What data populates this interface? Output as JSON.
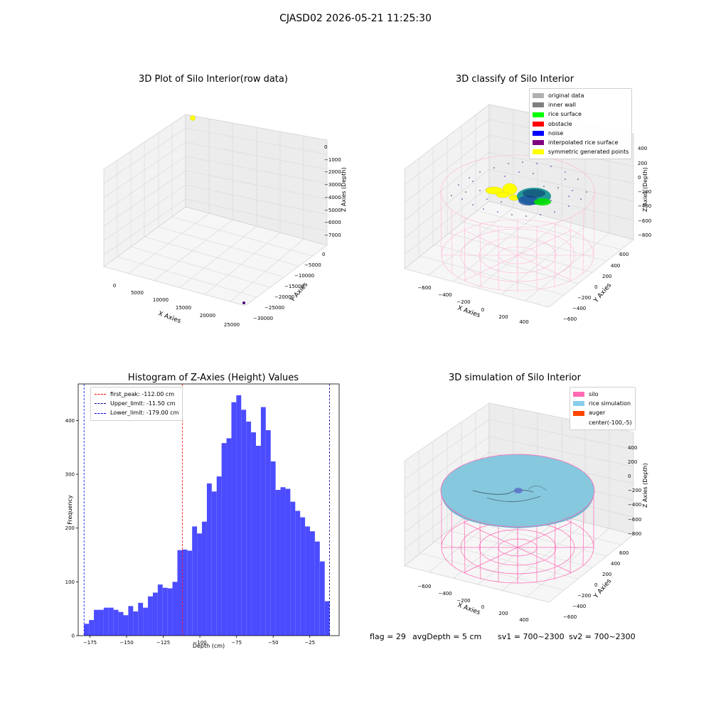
{
  "suptitle": "CJASD02 2026-05-21 11:25:30",
  "panel1": {
    "title": "3D Plot of Silo Interior(row data)",
    "x_axis_label": "X Axies",
    "y_axis_label": "Y Axies",
    "z_axis_label": "Z Axies (Depth)",
    "x_ticks": [
      "0",
      "5000",
      "10000",
      "15000",
      "20000",
      "25000"
    ],
    "y_ticks": [
      "0",
      "−5000",
      "−10000",
      "−15000",
      "−20000",
      "−25000",
      "−30000"
    ],
    "z_ticks": [
      "0",
      "−1000",
      "−2000",
      "−3000",
      "−4000",
      "−5000",
      "−6000",
      "−7000"
    ]
  },
  "panel2": {
    "title": "3D classify of Silo Interior",
    "x_axis_label": "X Axies",
    "y_axis_label": "Y Axies",
    "z_axis_label": "Z Axies (Depth)",
    "x_ticks": [
      "−600",
      "−400",
      "−200",
      "0",
      "200",
      "400"
    ],
    "y_ticks": [
      "600",
      "400",
      "200",
      "0",
      "−200",
      "−400",
      "−600"
    ],
    "z_ticks": [
      "400",
      "200",
      "0",
      "−200",
      "−400",
      "−600",
      "−800"
    ],
    "legend": [
      {
        "label": "original data",
        "color": "#b0b0b0"
      },
      {
        "label": "inner wall",
        "color": "#808080"
      },
      {
        "label": "rice surface",
        "color": "#00ff00"
      },
      {
        "label": "obstacle",
        "color": "#ff0000"
      },
      {
        "label": "noise",
        "color": "#0000ff"
      },
      {
        "label": "interpolated rice surface",
        "color": "#800080"
      },
      {
        "label": "symmetric generated points",
        "color": "#ffff00"
      }
    ]
  },
  "panel3": {
    "title": "3D simulation of Silo Interior",
    "x_axis_label": "X Axies",
    "y_axis_label": "Y Axies",
    "z_axis_label": "Z Axies (Depth)",
    "x_ticks": [
      "−600",
      "−400",
      "−200",
      "0",
      "200",
      "400"
    ],
    "y_ticks": [
      "600",
      "400",
      "200",
      "0",
      "−200",
      "−400",
      "−600"
    ],
    "z_ticks": [
      "400",
      "200",
      "0",
      "−200",
      "−400",
      "−600",
      "−800"
    ],
    "legend": [
      {
        "label": "silo",
        "color": "#ff69b4"
      },
      {
        "label": "rice simulation",
        "color": "#87ceeb"
      },
      {
        "label": "auger",
        "color": "#ff4500"
      },
      {
        "label": "center(-100,-5)",
        "color": ""
      }
    ]
  },
  "footer": {
    "flag": "flag = 29",
    "avg_depth": "avgDepth = 5 cm",
    "sv1": "sv1 = 700~2300",
    "sv2": "sv2 = 700~2300"
  },
  "chart_data": {
    "type": "bar",
    "title": "Histogram of Z-Axies (Height) Values",
    "xlabel": "Depth (cm)",
    "ylabel": "Frequency",
    "xlim": [
      -183,
      -5
    ],
    "ylim": [
      0,
      468
    ],
    "x_ticks": [
      -175,
      -150,
      -125,
      -100,
      -75,
      -50,
      -25
    ],
    "x_tick_labels": [
      "−175",
      "−150",
      "−125",
      "−100",
      "−75",
      "−50",
      "−25"
    ],
    "y_ticks": [
      0,
      100,
      200,
      300,
      400
    ],
    "y_tick_labels": [
      "0",
      "100",
      "200",
      "300",
      "400"
    ],
    "bin_start": -179,
    "bin_width": 3.35,
    "bar_color": "#4c4cff",
    "values": [
      22,
      29,
      48,
      48,
      52,
      52,
      48,
      44,
      38,
      55,
      45,
      61,
      52,
      73,
      80,
      95,
      89,
      88,
      100,
      159,
      160,
      158,
      203,
      190,
      212,
      283,
      268,
      296,
      358,
      367,
      434,
      447,
      420,
      398,
      378,
      353,
      425,
      382,
      324,
      271,
      276,
      273,
      249,
      232,
      220,
      203,
      194,
      175,
      138,
      64
    ],
    "vlines": [
      {
        "label": "first_peak: -112.00 cm",
        "x": -112,
        "color": "#ff0000"
      },
      {
        "label": "Upper_limit: -11.50 cm",
        "x": -11.5,
        "color": "#00008b"
      },
      {
        "label": "Lower_limit: -179.00 cm",
        "x": -179,
        "color": "#0000ff"
      }
    ]
  }
}
